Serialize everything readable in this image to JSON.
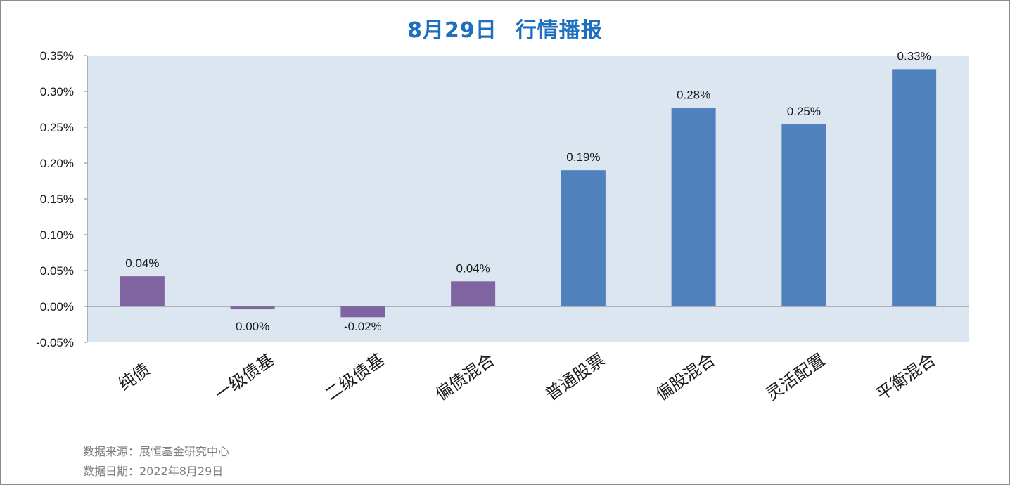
{
  "title_date": "8月29日",
  "title_text": "行情播报",
  "footer": {
    "source": "数据来源：展恒基金研究中心",
    "date": "数据日期：2022年8月29日"
  },
  "colors": {
    "plot_bg": "#dce6f1",
    "bond_bar": "#8064a2",
    "equity_bar": "#4f81bd",
    "title": "#1f6fbf",
    "axis": "#7f7f7f"
  },
  "chart_data": {
    "type": "bar",
    "title": "8月29日 行情播报",
    "xlabel": "",
    "ylabel": "",
    "ylim": [
      -0.05,
      0.35
    ],
    "yticks": [
      "0.35%",
      "0.30%",
      "0.25%",
      "0.20%",
      "0.15%",
      "0.10%",
      "0.05%",
      "0.00%",
      "-0.05%"
    ],
    "ytick_values": [
      0.35,
      0.3,
      0.25,
      0.2,
      0.15,
      0.1,
      0.05,
      0.0,
      -0.05
    ],
    "categories": [
      "纯债",
      "一级债基",
      "二级债基",
      "偏债混合",
      "普通股票",
      "偏股混合",
      "灵活配置",
      "平衡混合"
    ],
    "values": [
      0.042,
      -0.004,
      -0.015,
      0.035,
      0.19,
      0.277,
      0.254,
      0.331
    ],
    "data_labels": [
      "0.04%",
      "0.00%",
      "-0.02%",
      "0.04%",
      "0.19%",
      "0.28%",
      "0.25%",
      "0.33%"
    ],
    "bar_groups": [
      "bond",
      "bond",
      "bond",
      "bond",
      "equity",
      "equity",
      "equity",
      "equity"
    ],
    "grid": false,
    "legend": "none"
  }
}
